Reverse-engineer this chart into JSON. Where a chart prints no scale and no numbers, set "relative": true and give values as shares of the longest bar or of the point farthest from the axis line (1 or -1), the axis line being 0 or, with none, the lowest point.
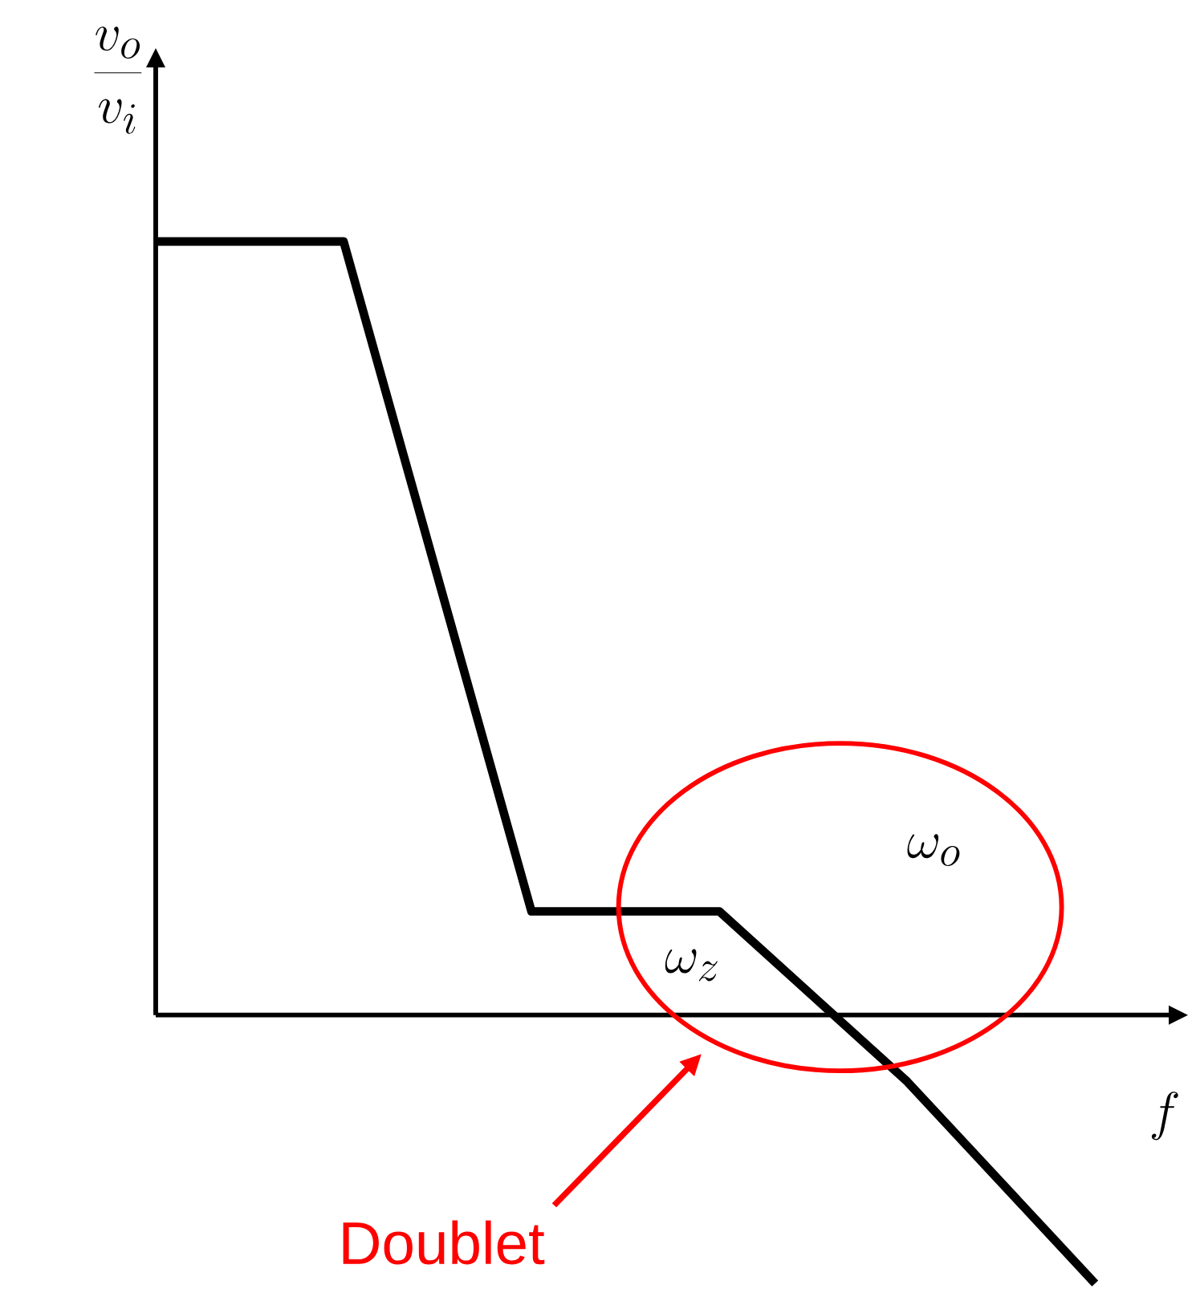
{
  "chart_data": {
    "type": "line",
    "relative": true,
    "xlabel": "f",
    "categories": [
      null,
      null,
      null,
      null,
      null,
      null
    ],
    "values": [
      1,
      1,
      0.134,
      0.134,
      -0.086,
      -0.347
    ],
    "color": "#000000",
    "marker": "none",
    "annotations": [
      "\\omega_o",
      "\\omega_z",
      "Doublet",
      "\\frac{v_o}{v_i}"
    ]
  }
}
